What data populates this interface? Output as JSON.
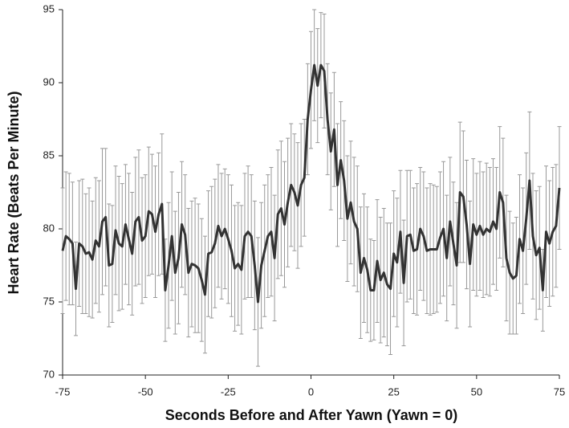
{
  "chart_data": {
    "type": "line",
    "x_label": "Seconds Before and After Yawn (Yawn = 0)",
    "y_label": "Heart Rate (Beats Per Minute)",
    "x": [
      -75,
      -74,
      -73,
      -72,
      -71,
      -70,
      -69,
      -68,
      -67,
      -66,
      -65,
      -64,
      -63,
      -62,
      -61,
      -60,
      -59,
      -58,
      -57,
      -56,
      -55,
      -54,
      -53,
      -52,
      -51,
      -50,
      -49,
      -48,
      -47,
      -46,
      -45,
      -44,
      -43,
      -42,
      -41,
      -40,
      -39,
      -38,
      -37,
      -36,
      -35,
      -34,
      -33,
      -32,
      -31,
      -30,
      -29,
      -28,
      -27,
      -26,
      -25,
      -24,
      -23,
      -22,
      -21,
      -20,
      -19,
      -18,
      -17,
      -16,
      -15,
      -14,
      -13,
      -12,
      -11,
      -10,
      -9,
      -8,
      -7,
      -6,
      -5,
      -4,
      -3,
      -2,
      -1,
      0,
      1,
      2,
      3,
      4,
      5,
      6,
      7,
      8,
      9,
      10,
      11,
      12,
      13,
      14,
      15,
      16,
      17,
      18,
      19,
      20,
      21,
      22,
      23,
      24,
      25,
      26,
      27,
      28,
      29,
      30,
      31,
      32,
      33,
      34,
      35,
      36,
      37,
      38,
      39,
      40,
      41,
      42,
      43,
      44,
      45,
      46,
      47,
      48,
      49,
      50,
      51,
      52,
      53,
      54,
      55,
      56,
      57,
      58,
      59,
      60,
      61,
      62,
      63,
      64,
      65,
      66,
      67,
      68,
      69,
      70,
      71,
      72,
      73,
      74,
      75
    ],
    "values": [
      78.5,
      79.5,
      79.3,
      79,
      75.9,
      79,
      78.8,
      78.3,
      78.4,
      77.9,
      79.2,
      78.8,
      80.5,
      80.8,
      77.5,
      77.6,
      79.9,
      79,
      78.8,
      80.3,
      79.3,
      78.3,
      80.5,
      80.8,
      79.2,
      79.5,
      81.2,
      81,
      79.8,
      81,
      81.7,
      75.8,
      77.5,
      79.5,
      77,
      78,
      80.3,
      79.6,
      77,
      77.6,
      77.5,
      77.3,
      76.5,
      75.5,
      78.3,
      78.4,
      79,
      80.2,
      79.5,
      80,
      79.3,
      78.5,
      77.3,
      77.6,
      77.2,
      79.5,
      79.8,
      79.5,
      77.5,
      75,
      77.5,
      78.5,
      79.5,
      79.8,
      78,
      81,
      81.4,
      80.3,
      81.8,
      83,
      82.5,
      81.6,
      83,
      83.5,
      87.5,
      89.5,
      91.2,
      89.8,
      91.2,
      90.8,
      87.5,
      85.3,
      86.8,
      83,
      84.7,
      83.3,
      80.7,
      81.8,
      80.5,
      80,
      77,
      78,
      77.2,
      75.8,
      75.8,
      77.8,
      76.5,
      77,
      76.2,
      75.9,
      78.3,
      77.7,
      79.8,
      76.3,
      79.5,
      79.6,
      78.5,
      78.6,
      80,
      79.5,
      78.5,
      78.6,
      78.6,
      78.6,
      79.4,
      80,
      78,
      80.5,
      79,
      77.5,
      82.5,
      82.2,
      80.3,
      77.6,
      80.3,
      79.6,
      80.2,
      79.6,
      80,
      79.8,
      80.5,
      80,
      82.5,
      81.8,
      78,
      77,
      76.6,
      76.8,
      79.3,
      78.5,
      80.7,
      83.3,
      79.5,
      78.2,
      78.7,
      75.8,
      79.8,
      79,
      79.8,
      80.2,
      82.8
    ],
    "errors": [
      4.3,
      4.4,
      4.5,
      4.2,
      3.2,
      4.3,
      4.6,
      4.1,
      4.4,
      4.0,
      4.3,
      4.5,
      5.0,
      4.7,
      4.2,
      4.0,
      4.4,
      4.6,
      4.3,
      4.1,
      4.5,
      4.2,
      4.4,
      4.6,
      4.3,
      4.2,
      4.4,
      4.1,
      4.5,
      4.2,
      4.8,
      3.5,
      4.3,
      4.4,
      4.2,
      4.5,
      4.3,
      4.1,
      4.4,
      4.3,
      4.6,
      4.4,
      4.2,
      4.0,
      4.3,
      4.5,
      4.4,
      4.2,
      4.3,
      4.1,
      4.4,
      4.5,
      4.3,
      4.2,
      4.4,
      4.3,
      4.5,
      4.2,
      4.4,
      4.4,
      4.3,
      4.5,
      4.2,
      4.4,
      4.3,
      4.4,
      4.6,
      4.3,
      4.4,
      4.2,
      4.0,
      4.3,
      4.2,
      4.0,
      3.8,
      4.0,
      3.8,
      3.9,
      3.6,
      3.9,
      3.8,
      4.0,
      3.9,
      4.2,
      4.0,
      4.1,
      4.3,
      4.2,
      4.4,
      4.3,
      4.5,
      4.4,
      4.3,
      3.5,
      3.4,
      4.2,
      4.3,
      4.4,
      4.2,
      4.5,
      4.3,
      4.4,
      4.2,
      4.3,
      4.5,
      4.4,
      4.3,
      4.5,
      4.2,
      4.4,
      4.3,
      4.5,
      4.4,
      4.3,
      4.5,
      4.6,
      4.3,
      4.4,
      4.2,
      4.3,
      4.8,
      4.5,
      4.4,
      4.3,
      4.5,
      4.2,
      4.4,
      4.3,
      4.5,
      4.4,
      4.3,
      4.2,
      4.5,
      4.4,
      4.3,
      4.2,
      3.8,
      4.0,
      4.4,
      4.3,
      4.5,
      4.7,
      4.3,
      4.4,
      4.2,
      2.8,
      4.5,
      4.3,
      4.4,
      4.2,
      4.2
    ],
    "color": "#333333",
    "error_color": "#999999",
    "xlim": [
      -75,
      75
    ],
    "ylim": [
      70,
      95
    ],
    "xticks": [
      -75,
      -50,
      -25,
      0,
      25,
      50,
      75
    ],
    "yticks": [
      70,
      75,
      80,
      85,
      90,
      95
    ]
  }
}
